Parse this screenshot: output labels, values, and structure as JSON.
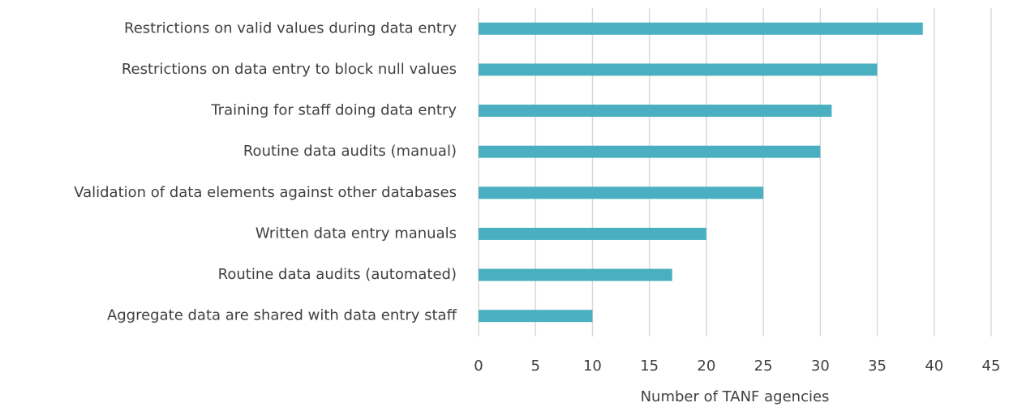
{
  "chart_data": {
    "type": "bar",
    "orientation": "horizontal",
    "categories": [
      "Restrictions on valid values during data entry",
      "Restrictions on data entry to block null values",
      "Training for staff doing data entry",
      "Routine data audits (manual)",
      "Validation of data elements against other databases",
      "Written data entry manuals",
      "Routine data audits (automated)",
      "Aggregate data are shared with data entry staff"
    ],
    "values": [
      39,
      35,
      31,
      30,
      25,
      20,
      17,
      10
    ],
    "color": "#4aafc0",
    "x_label": "Number of TANF agencies",
    "xlim": [
      0,
      45
    ],
    "xticks": [
      0,
      5,
      10,
      15,
      20,
      25,
      30,
      35,
      40,
      45
    ],
    "grid": true
  }
}
